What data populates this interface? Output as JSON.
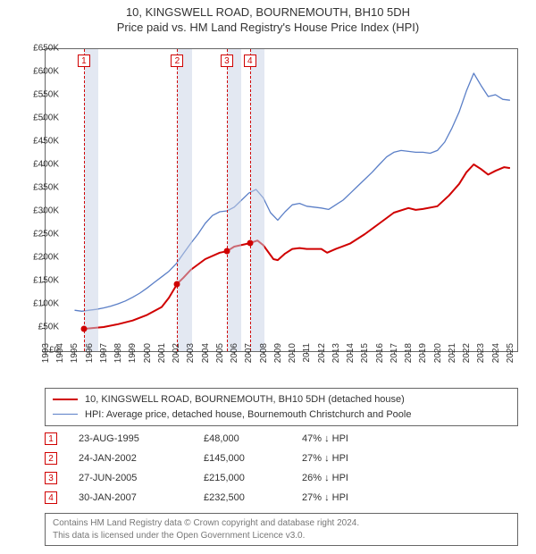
{
  "title1": "10, KINGSWELL ROAD, BOURNEMOUTH, BH10 5DH",
  "title2": "Price paid vs. HM Land Registry's House Price Index (HPI)",
  "chart": {
    "type": "line",
    "x_start": 1993,
    "x_end": 2025.5,
    "xticks": [
      1993,
      1994,
      1995,
      1996,
      1997,
      1998,
      1999,
      2000,
      2001,
      2002,
      2003,
      2004,
      2005,
      2006,
      2007,
      2008,
      2009,
      2010,
      2011,
      2012,
      2013,
      2014,
      2015,
      2016,
      2017,
      2018,
      2019,
      2020,
      2021,
      2022,
      2023,
      2024,
      2025
    ],
    "y_min": 0,
    "y_max": 650000,
    "yticks": [
      0,
      50000,
      100000,
      150000,
      200000,
      250000,
      300000,
      350000,
      400000,
      450000,
      500000,
      550000,
      600000,
      650000
    ],
    "ylabels": [
      "£0",
      "£50K",
      "£100K",
      "£150K",
      "£200K",
      "£250K",
      "£300K",
      "£350K",
      "£400K",
      "£450K",
      "£500K",
      "£550K",
      "£600K",
      "£650K"
    ],
    "band_color": "rgba(200,210,230,0.5)",
    "grid_color": "#666666",
    "background_color": "#ffffff",
    "prop_color": "#d00000",
    "hpi_color": "#5b7fc7",
    "prop_line_width": 2.0,
    "hpi_line_width": 1.3,
    "events": [
      {
        "n": 1,
        "date_frac": 1995.64,
        "price": 48000
      },
      {
        "n": 2,
        "date_frac": 2002.07,
        "price": 145000
      },
      {
        "n": 3,
        "date_frac": 2005.49,
        "price": 215000
      },
      {
        "n": 4,
        "date_frac": 2007.08,
        "price": 232500
      }
    ],
    "prop_series": [
      [
        1995.64,
        48000
      ],
      [
        1996,
        49000
      ],
      [
        1997,
        52000
      ],
      [
        1998,
        58000
      ],
      [
        1999,
        66000
      ],
      [
        2000,
        78000
      ],
      [
        2001,
        95000
      ],
      [
        2001.5,
        115000
      ],
      [
        2002.07,
        145000
      ],
      [
        2002.5,
        158000
      ],
      [
        2003,
        175000
      ],
      [
        2004,
        198000
      ],
      [
        2005,
        212000
      ],
      [
        2005.49,
        215000
      ],
      [
        2006,
        225000
      ],
      [
        2007.08,
        232500
      ],
      [
        2007.6,
        238000
      ],
      [
        2008,
        228000
      ],
      [
        2008.7,
        198000
      ],
      [
        2009,
        196000
      ],
      [
        2009.5,
        210000
      ],
      [
        2010,
        220000
      ],
      [
        2010.5,
        222000
      ],
      [
        2011,
        220000
      ],
      [
        2012,
        220000
      ],
      [
        2012.4,
        212000
      ],
      [
        2013,
        220000
      ],
      [
        2014,
        232000
      ],
      [
        2015,
        252000
      ],
      [
        2016,
        275000
      ],
      [
        2017,
        298000
      ],
      [
        2018,
        308000
      ],
      [
        2018.5,
        304000
      ],
      [
        2019,
        306000
      ],
      [
        2020,
        312000
      ],
      [
        2020.8,
        335000
      ],
      [
        2021.5,
        360000
      ],
      [
        2022,
        385000
      ],
      [
        2022.5,
        402000
      ],
      [
        2023,
        392000
      ],
      [
        2023.5,
        380000
      ],
      [
        2024,
        388000
      ],
      [
        2024.6,
        396000
      ],
      [
        2025,
        394000
      ]
    ],
    "hpi_series": [
      [
        1995,
        88000
      ],
      [
        1995.5,
        86000
      ],
      [
        1996,
        88000
      ],
      [
        1996.5,
        90000
      ],
      [
        1997,
        93000
      ],
      [
        1997.5,
        97000
      ],
      [
        1998,
        102000
      ],
      [
        1998.5,
        108000
      ],
      [
        1999,
        116000
      ],
      [
        1999.5,
        125000
      ],
      [
        2000,
        136000
      ],
      [
        2000.5,
        148000
      ],
      [
        2001,
        160000
      ],
      [
        2001.5,
        172000
      ],
      [
        2002,
        188000
      ],
      [
        2002.5,
        210000
      ],
      [
        2003,
        232000
      ],
      [
        2003.5,
        252000
      ],
      [
        2004,
        275000
      ],
      [
        2004.5,
        292000
      ],
      [
        2005,
        300000
      ],
      [
        2005.5,
        302000
      ],
      [
        2006,
        310000
      ],
      [
        2006.5,
        325000
      ],
      [
        2007,
        340000
      ],
      [
        2007.5,
        348000
      ],
      [
        2008,
        330000
      ],
      [
        2008.5,
        298000
      ],
      [
        2009,
        282000
      ],
      [
        2009.5,
        300000
      ],
      [
        2010,
        315000
      ],
      [
        2010.5,
        318000
      ],
      [
        2011,
        312000
      ],
      [
        2011.5,
        310000
      ],
      [
        2012,
        308000
      ],
      [
        2012.5,
        305000
      ],
      [
        2013,
        315000
      ],
      [
        2013.5,
        325000
      ],
      [
        2014,
        340000
      ],
      [
        2014.5,
        355000
      ],
      [
        2015,
        370000
      ],
      [
        2015.5,
        385000
      ],
      [
        2016,
        402000
      ],
      [
        2016.5,
        418000
      ],
      [
        2017,
        428000
      ],
      [
        2017.5,
        432000
      ],
      [
        2018,
        430000
      ],
      [
        2018.5,
        428000
      ],
      [
        2019,
        428000
      ],
      [
        2019.5,
        426000
      ],
      [
        2020,
        432000
      ],
      [
        2020.5,
        450000
      ],
      [
        2021,
        480000
      ],
      [
        2021.5,
        515000
      ],
      [
        2022,
        560000
      ],
      [
        2022.5,
        598000
      ],
      [
        2023,
        572000
      ],
      [
        2023.5,
        548000
      ],
      [
        2024,
        552000
      ],
      [
        2024.5,
        542000
      ],
      [
        2025,
        540000
      ]
    ]
  },
  "legend": {
    "item1": "10, KINGSWELL ROAD, BOURNEMOUTH, BH10 5DH (detached house)",
    "item2": "HPI: Average price, detached house, Bournemouth Christchurch and Poole"
  },
  "events_table": [
    {
      "n": "1",
      "date": "23-AUG-1995",
      "price": "£48,000",
      "diff": "47% ↓ HPI"
    },
    {
      "n": "2",
      "date": "24-JAN-2002",
      "price": "£145,000",
      "diff": "27% ↓ HPI"
    },
    {
      "n": "3",
      "date": "27-JUN-2005",
      "price": "£215,000",
      "diff": "26% ↓ HPI"
    },
    {
      "n": "4",
      "date": "30-JAN-2007",
      "price": "£232,500",
      "diff": "27% ↓ HPI"
    }
  ],
  "footer": {
    "line1": "Contains HM Land Registry data © Crown copyright and database right 2024.",
    "line2": "This data is licensed under the Open Government Licence v3.0."
  }
}
